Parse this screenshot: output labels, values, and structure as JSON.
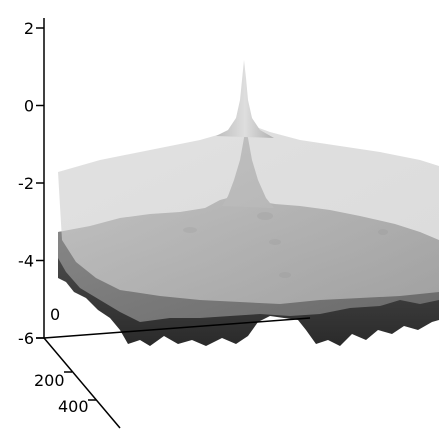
{
  "chart_data": {
    "type": "surface3d",
    "title": "",
    "zlabel": "",
    "xlabel": "",
    "ylabel": "",
    "z_axis_ticks": [
      "2",
      "0",
      "-2",
      "-4",
      "-6"
    ],
    "z_range": [
      -6,
      2
    ],
    "depth_axis_ticks": [
      "0",
      "200",
      "400"
    ],
    "grid": false,
    "legend": "none",
    "surfaces": [
      {
        "name": "",
        "description": "light translucent upper sheet with tall central cusp",
        "color": "#c8c8c8",
        "peak_z": 2.0,
        "base_z": -2.3
      },
      {
        "name": "",
        "description": "dark rough lower surface with central spike",
        "color": "#6a6a6a",
        "peak_z": -0.6,
        "base_z": -5.2
      }
    ]
  }
}
